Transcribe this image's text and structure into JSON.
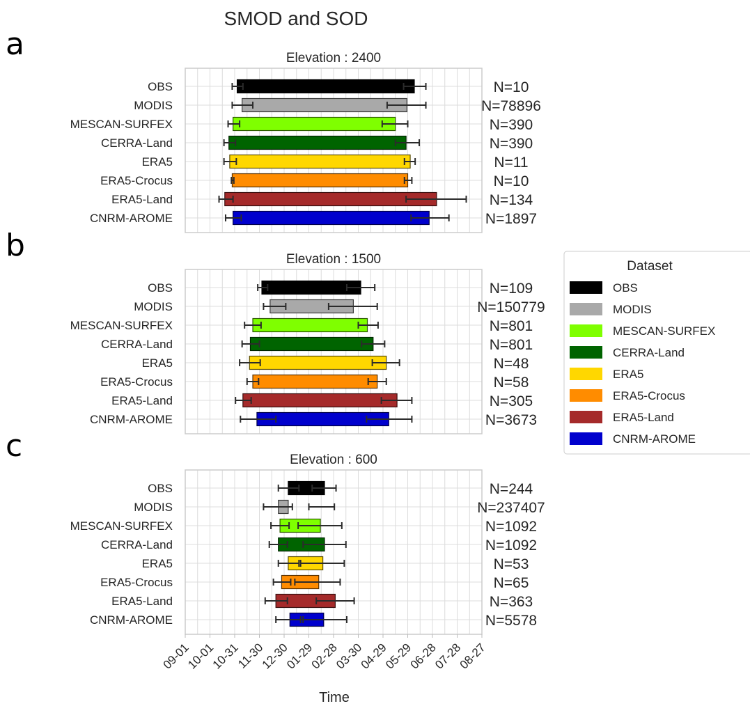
{
  "figure": {
    "title": "SMOD and SOD",
    "xlabel": "Time",
    "x_ticks": [
      "09-01",
      "10-01",
      "10-31",
      "11-30",
      "12-30",
      "01-29",
      "02-28",
      "03-30",
      "04-29",
      "05-29",
      "06-28",
      "07-28",
      "08-27"
    ],
    "legend_title": "Dataset"
  },
  "colors": {
    "OBS": "#000000",
    "MODIS": "#a9a9a9",
    "MESCAN-SURFEX": "#7fff00",
    "CERRA-Land": "#006400",
    "ERA5": "#ffd700",
    "ERA5-Crocus": "#ff8c00",
    "ERA5-Land": "#a52a2a",
    "CNRM-AROME": "#0000cd"
  },
  "chart_data": [
    {
      "type": "bar",
      "panel_letter": "a",
      "title": "Elevation : 2400",
      "x_unit": "days since 09-01",
      "xlim": [
        0,
        360
      ],
      "series": [
        {
          "name": "OBS",
          "sod": 63,
          "smod": 278,
          "sod_err": [
            57,
            70
          ],
          "smod_err": [
            265,
            292
          ],
          "n_label": "N=10"
        },
        {
          "name": "MODIS",
          "sod": 69,
          "smod": 269,
          "sod_err": [
            57,
            82
          ],
          "smod_err": [
            245,
            292
          ],
          "n_label": "N=78896"
        },
        {
          "name": "MESCAN-SURFEX",
          "sod": 58,
          "smod": 255,
          "sod_err": [
            52,
            66
          ],
          "smod_err": [
            239,
            270
          ],
          "n_label": "N=390"
        },
        {
          "name": "CERRA-Land",
          "sod": 53,
          "smod": 268,
          "sod_err": [
            47,
            61
          ],
          "smod_err": [
            255,
            284
          ],
          "n_label": "N=390"
        },
        {
          "name": "ERA5",
          "sod": 54,
          "smod": 273,
          "sod_err": [
            47,
            62
          ],
          "smod_err": [
            266,
            279
          ],
          "n_label": "N=11"
        },
        {
          "name": "ERA5-Crocus",
          "sod": 57,
          "smod": 270,
          "sod_err": [
            56,
            59
          ],
          "smod_err": [
            266,
            275
          ],
          "n_label": "N=10"
        },
        {
          "name": "ERA5-Land",
          "sod": 48,
          "smod": 305,
          "sod_err": [
            41,
            58
          ],
          "smod_err": [
            268,
            341
          ],
          "n_label": "N=134"
        },
        {
          "name": "CNRM-AROME",
          "sod": 58,
          "smod": 296,
          "sod_err": [
            49,
            68
          ],
          "smod_err": [
            274,
            320
          ],
          "n_label": "N=1897"
        }
      ]
    },
    {
      "type": "bar",
      "panel_letter": "b",
      "title": "Elevation : 1500",
      "x_unit": "days since 09-01",
      "xlim": [
        0,
        360
      ],
      "series": [
        {
          "name": "OBS",
          "sod": 93,
          "smod": 213,
          "sod_err": [
            88,
            100
          ],
          "smod_err": [
            196,
            230
          ],
          "n_label": "N=109"
        },
        {
          "name": "MODIS",
          "sod": 103,
          "smod": 204,
          "sod_err": [
            95,
            122
          ],
          "smod_err": [
            174,
            233
          ],
          "n_label": "N=150779"
        },
        {
          "name": "MESCAN-SURFEX",
          "sod": 82,
          "smod": 221,
          "sod_err": [
            72,
            92
          ],
          "smod_err": [
            210,
            234
          ],
          "n_label": "N=801"
        },
        {
          "name": "CERRA-Land",
          "sod": 79,
          "smod": 228,
          "sod_err": [
            69,
            90
          ],
          "smod_err": [
            214,
            242
          ],
          "n_label": "N=801"
        },
        {
          "name": "ERA5",
          "sod": 78,
          "smod": 244,
          "sod_err": [
            66,
            91
          ],
          "smod_err": [
            227,
            260
          ],
          "n_label": "N=48"
        },
        {
          "name": "ERA5-Crocus",
          "sod": 82,
          "smod": 233,
          "sod_err": [
            75,
            89
          ],
          "smod_err": [
            222,
            244
          ],
          "n_label": "N=58"
        },
        {
          "name": "ERA5-Land",
          "sod": 70,
          "smod": 257,
          "sod_err": [
            61,
            80
          ],
          "smod_err": [
            238,
            275
          ],
          "n_label": "N=305"
        },
        {
          "name": "CNRM-AROME",
          "sod": 87,
          "smod": 247,
          "sod_err": [
            67,
            110
          ],
          "smod_err": [
            220,
            275
          ],
          "n_label": "N=3673"
        }
      ]
    },
    {
      "type": "bar",
      "panel_letter": "c",
      "title": "Elevation : 600",
      "x_unit": "days since 09-01",
      "xlim": [
        0,
        360
      ],
      "series": [
        {
          "name": "OBS",
          "sod": 125,
          "smod": 169,
          "sod_err": [
            113,
            138
          ],
          "smod_err": [
            154,
            183
          ],
          "n_label": "N=244"
        },
        {
          "name": "MODIS",
          "sod": 113,
          "smod": 125,
          "sod_err": [
            95,
            130
          ],
          "smod_err": [
            150,
            181
          ],
          "n_label": "N=237407"
        },
        {
          "name": "MESCAN-SURFEX",
          "sod": 115,
          "smod": 164,
          "sod_err": [
            104,
            126
          ],
          "smod_err": [
            137,
            190
          ],
          "n_label": "N=1092"
        },
        {
          "name": "CERRA-Land",
          "sod": 113,
          "smod": 169,
          "sod_err": [
            102,
            124
          ],
          "smod_err": [
            143,
            195
          ],
          "n_label": "N=1092"
        },
        {
          "name": "ERA5",
          "sod": 125,
          "smod": 167,
          "sod_err": [
            113,
            138
          ],
          "smod_err": [
            140,
            193
          ],
          "n_label": "N=53"
        },
        {
          "name": "ERA5-Crocus",
          "sod": 117,
          "smod": 162,
          "sod_err": [
            107,
            128
          ],
          "smod_err": [
            133,
            188
          ],
          "n_label": "N=65"
        },
        {
          "name": "ERA5-Land",
          "sod": 110,
          "smod": 182,
          "sod_err": [
            97,
            124
          ],
          "smod_err": [
            159,
            205
          ],
          "n_label": "N=363"
        },
        {
          "name": "CNRM-AROME",
          "sod": 127,
          "smod": 168,
          "sod_err": [
            110,
            143
          ],
          "smod_err": [
            140,
            196
          ],
          "n_label": "N=5578"
        }
      ]
    }
  ]
}
